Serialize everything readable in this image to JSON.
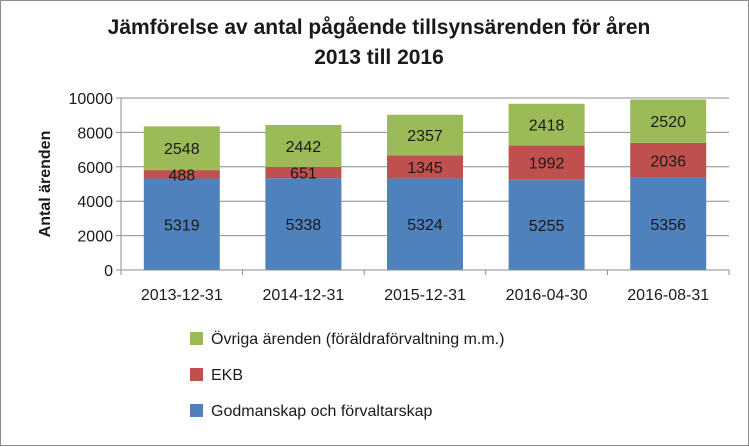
{
  "chart_data": {
    "type": "bar",
    "stacked": true,
    "title_lines": [
      "Jämförelse av antal pågående tillsynsärenden för åren",
      "2013 till 2016"
    ],
    "xlabel": "",
    "ylabel": "Antal ärenden",
    "ylim": [
      0,
      10000
    ],
    "yticks": [
      0,
      2000,
      4000,
      6000,
      8000,
      10000
    ],
    "ytick_labels": [
      "0",
      "2000",
      "4000",
      "6000",
      "8000",
      "10000"
    ],
    "categories": [
      "2013-12-31",
      "2014-12-31",
      "2015-12-31",
      "2016-04-30",
      "2016-08-31"
    ],
    "series": [
      {
        "name": "Godmanskap och förvaltarskap",
        "color": "#4f81bd",
        "values": [
          5319,
          5338,
          5324,
          5255,
          5356
        ]
      },
      {
        "name": "EKB",
        "color": "#c0504d",
        "values": [
          488,
          651,
          1345,
          1992,
          2036
        ]
      },
      {
        "name": "Övriga ärenden (föräldraförvaltning m.m.)",
        "color": "#9bbb59",
        "values": [
          2548,
          2442,
          2357,
          2418,
          2520
        ]
      }
    ],
    "data_labels": true,
    "grid": true,
    "legend_position": "bottom"
  }
}
